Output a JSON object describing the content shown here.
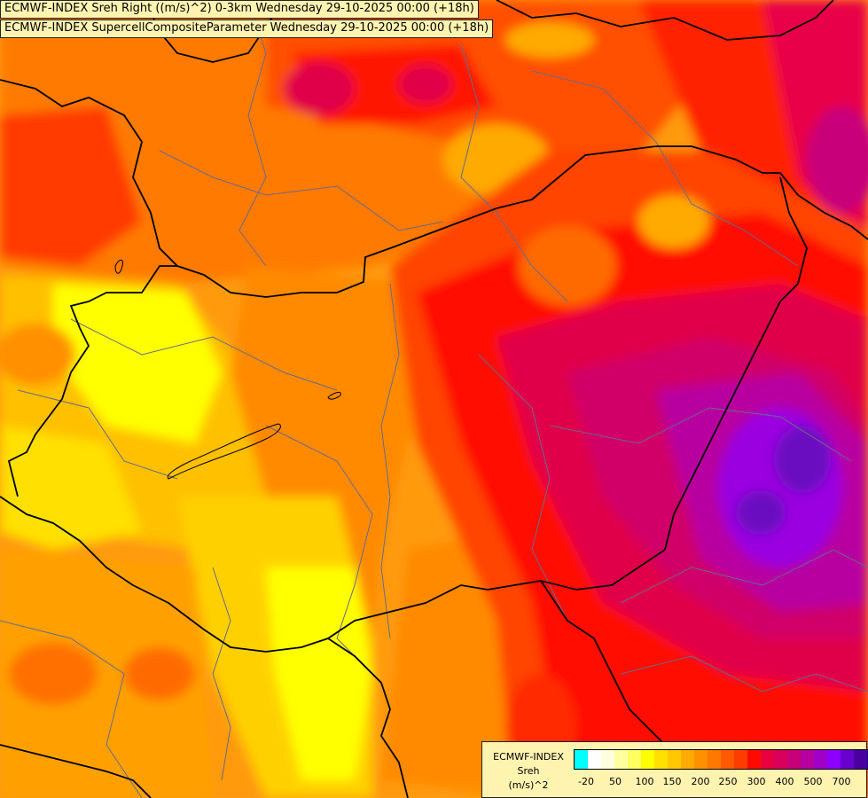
{
  "titles": {
    "line1": "ECMWF-INDEX Sreh Right ((m/s)^2) 0-3km Wednesday 29-10-2025 00:00 (+18h)",
    "line2": "ECMWF-INDEX SupercellCompositeParameter Wednesday 29-10-2025 00:00 (+18h)"
  },
  "legend": {
    "model": "ECMWF-INDEX",
    "variable": "Sreh",
    "unit": "(m/s)^2",
    "tick_labels": [
      "-20",
      "50",
      "100",
      "150",
      "200",
      "250",
      "300",
      "400",
      "500",
      "700"
    ],
    "colors": [
      "#00ffff",
      "#ffffff",
      "#ffffe0",
      "#ffffa0",
      "#ffff60",
      "#ffff00",
      "#ffe000",
      "#ffc800",
      "#ffaa00",
      "#ff9000",
      "#ff7800",
      "#ff5a00",
      "#ff3c00",
      "#ff0a00",
      "#e80040",
      "#d8005a",
      "#c80078",
      "#b800a0",
      "#a000c8",
      "#8c00ff",
      "#6a00d0",
      "#4a00a0",
      "#101080"
    ]
  }
}
